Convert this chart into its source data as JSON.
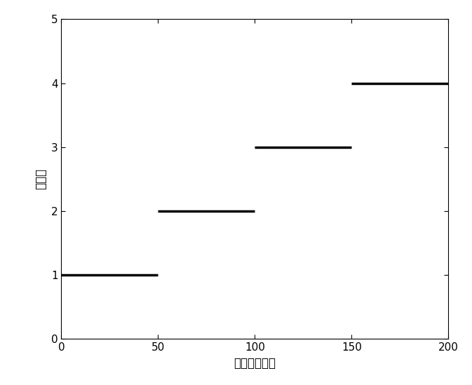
{
  "segments": [
    {
      "x_start": 0,
      "x_end": 50,
      "y": 1
    },
    {
      "x_start": 50,
      "x_end": 100,
      "y": 2
    },
    {
      "x_start": 100,
      "x_end": 150,
      "y": 3
    },
    {
      "x_start": 150,
      "x_end": 200,
      "y": 4
    }
  ],
  "xlim": [
    0,
    200
  ],
  "ylim": [
    0,
    5
  ],
  "xticks": [
    0,
    50,
    100,
    150,
    200
  ],
  "yticks": [
    0,
    1,
    2,
    3,
    4,
    5
  ],
  "xlabel": "数据采样序列",
  "ylabel": "类别号",
  "line_color": "#000000",
  "line_width": 2.5,
  "background_color": "#ffffff",
  "axes_bg": "#ffffff",
  "tick_fontsize": 11,
  "label_fontsize": 12
}
